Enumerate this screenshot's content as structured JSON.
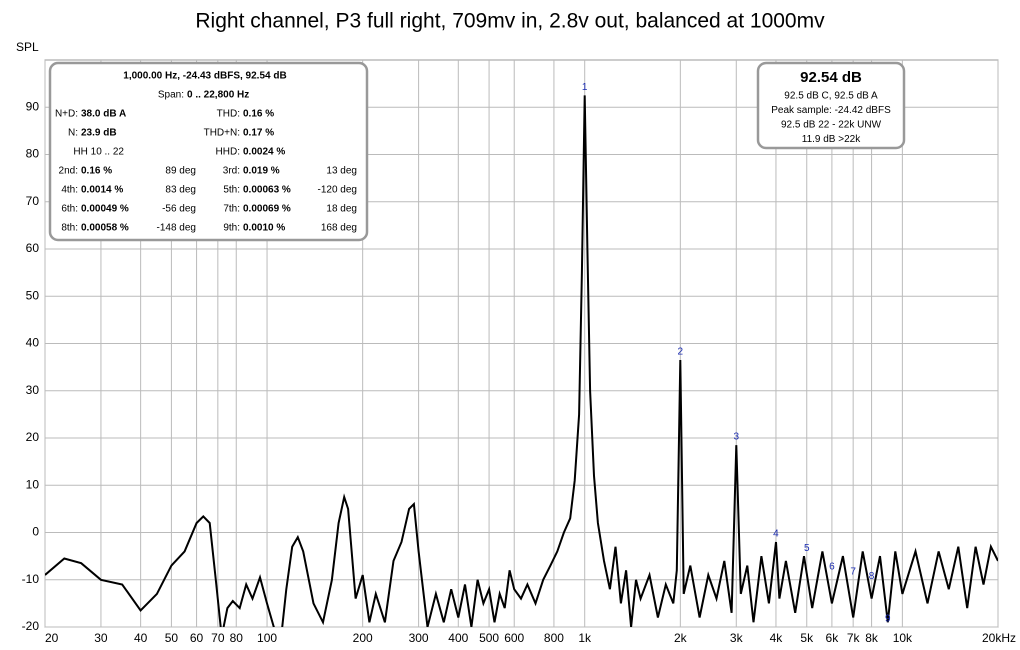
{
  "chart_data": {
    "type": "line",
    "title": "Right channel, P3 full right, 709mv in, 2.8v out, balanced at 1000mv",
    "y_label": "SPL",
    "xscale": "log",
    "grid": true,
    "color": "#000000",
    "xlim": [
      20,
      20000
    ],
    "ylim": [
      -20,
      100
    ],
    "yticks": [
      -20,
      -10,
      0,
      10,
      20,
      30,
      40,
      50,
      60,
      70,
      80,
      90
    ],
    "xticks": [
      20,
      30,
      40,
      50,
      60,
      70,
      80,
      100,
      200,
      300,
      400,
      500,
      600,
      800,
      {
        "value": 1000,
        "label": "1k"
      },
      {
        "value": 2000,
        "label": "2k"
      },
      {
        "value": 3000,
        "label": "3k"
      },
      {
        "value": 4000,
        "label": "4k"
      },
      {
        "value": 5000,
        "label": "5k"
      },
      {
        "value": 6000,
        "label": "6k"
      },
      {
        "value": 7000,
        "label": "7k"
      },
      {
        "value": 8000,
        "label": "8k"
      },
      {
        "value": 10000,
        "label": "10k"
      },
      {
        "value": 20000,
        "label": "20kHz"
      }
    ],
    "x": [
      20,
      23,
      26,
      30,
      35,
      40,
      45,
      50,
      55,
      60,
      63,
      66,
      69,
      72,
      75,
      78,
      82,
      86,
      90,
      95,
      100,
      105,
      110,
      115,
      120,
      125,
      130,
      140,
      150,
      160,
      168,
      175,
      180,
      190,
      200,
      210,
      220,
      235,
      250,
      265,
      280,
      290,
      300,
      320,
      340,
      360,
      380,
      400,
      420,
      440,
      460,
      480,
      500,
      520,
      540,
      560,
      580,
      600,
      630,
      660,
      700,
      740,
      780,
      820,
      860,
      900,
      930,
      960,
      980,
      1000,
      1020,
      1040,
      1070,
      1100,
      1150,
      1200,
      1250,
      1300,
      1350,
      1400,
      1450,
      1500,
      1600,
      1700,
      1800,
      1900,
      1950,
      2000,
      2050,
      2150,
      2300,
      2450,
      2600,
      2750,
      2900,
      3000,
      3100,
      3250,
      3400,
      3600,
      3800,
      4000,
      4100,
      4300,
      4600,
      4900,
      5200,
      5600,
      6000,
      6500,
      7000,
      7500,
      8000,
      8500,
      9000,
      9500,
      10000,
      11000,
      12000,
      13000,
      14000,
      15000,
      16000,
      17000,
      18000,
      19000,
      20000
    ],
    "values": [
      -9,
      -5.5,
      -6.5,
      -10,
      -11,
      -16.5,
      -13,
      -7,
      -4,
      2,
      3.4,
      2,
      -10,
      -22,
      -16,
      -14.5,
      -16,
      -11,
      -14,
      -9.5,
      -15,
      -20,
      -24,
      -12,
      -3,
      -1,
      -4,
      -15,
      -19,
      -10,
      2,
      7.5,
      5,
      -14,
      -9,
      -19,
      -13,
      -19,
      -6,
      -2,
      5,
      6,
      -4,
      -20,
      -13,
      -19,
      -12,
      -18,
      -11,
      -20,
      -10,
      -15,
      -12,
      -19,
      -13,
      -16,
      -8,
      -12,
      -14,
      -11,
      -15,
      -10,
      -7,
      -4,
      0,
      3,
      11,
      25,
      55,
      92.5,
      60,
      30,
      12,
      2,
      -6,
      -12,
      -3,
      -15,
      -8,
      -20,
      -10,
      -14,
      -9,
      -18,
      -11,
      -15,
      -8,
      36.5,
      -13,
      -7,
      -18,
      -9,
      -14,
      -6,
      -17,
      18.5,
      -13,
      -7,
      -19,
      -5,
      -15,
      -2,
      -14,
      -6,
      -17,
      -5,
      -16,
      -4,
      -15,
      -5,
      -18,
      -4,
      -14,
      -5,
      -19,
      -4,
      -13,
      -4,
      -15,
      -4,
      -12,
      -3,
      -16,
      -3,
      -11,
      -3,
      -6
    ],
    "harmonics": [
      {
        "label": "1",
        "freq": 1000,
        "level": 92.5
      },
      {
        "label": "2",
        "freq": 2000,
        "level": 36.5
      },
      {
        "label": "3",
        "freq": 3000,
        "level": 18.5
      },
      {
        "label": "4",
        "freq": 4000,
        "level": -2
      },
      {
        "label": "5",
        "freq": 5000,
        "level": -5
      },
      {
        "label": "6",
        "freq": 6000,
        "level": -9
      },
      {
        "label": "7",
        "freq": 7000,
        "level": -10
      },
      {
        "label": "8",
        "freq": 8000,
        "level": -11
      },
      {
        "label": "9",
        "freq": 9000,
        "level": -20
      }
    ],
    "stats": {
      "header": "1,000.00 Hz, -24.43 dBFS, 92.54 dB",
      "span_label": "Span:",
      "span": "0 .. 22,800 Hz",
      "nd_label": "N+D:",
      "nd": "38.0 dB A",
      "thd_label": "THD:",
      "thd": "0.16 %",
      "n_label": "N:",
      "n": "23.9 dB",
      "thdn_label": "THD+N:",
      "thdn": "0.17 %",
      "hh": "HH 10 .. 22",
      "hhd_label": "HHD:",
      "hhd": "0.0024 %",
      "rows": [
        [
          "2nd:",
          "0.16 %",
          "89 deg",
          "3rd:",
          "0.019 %",
          "13 deg"
        ],
        [
          "4th:",
          "0.0014 %",
          "83 deg",
          "5th:",
          "0.00063 %",
          "-120 deg"
        ],
        [
          "6th:",
          "0.00049 %",
          "-56 deg",
          "7th:",
          "0.00069 %",
          "18 deg"
        ],
        [
          "8th:",
          "0.00058 %",
          "-148 deg",
          "9th:",
          "0.0010 %",
          "168 deg"
        ]
      ]
    },
    "level_box": {
      "value": "92.54 dB",
      "lines": [
        "92.5 dB C, 92.5 dB A",
        "Peak sample: -24.42 dBFS",
        "92.5 dB 22 - 22k UNW",
        "11.9 dB >22k"
      ]
    }
  }
}
